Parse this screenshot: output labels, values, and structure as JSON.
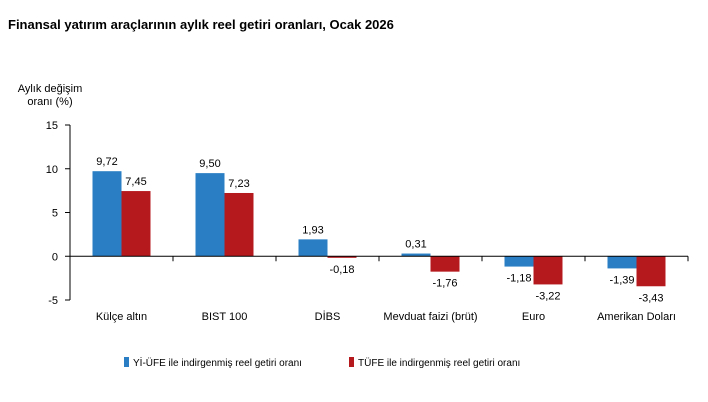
{
  "chart_data": {
    "type": "bar",
    "title": "Finansal yatırım araçlarının aylık reel getiri oranları, Ocak 2026",
    "ylabel_lines": [
      "Aylık değişim",
      "oranı (%)"
    ],
    "xlabel": "",
    "ylim": [
      -5,
      15
    ],
    "yticks": [
      -5,
      0,
      5,
      10,
      15
    ],
    "grid": false,
    "legend_position": "bottom",
    "categories": [
      "Külçe altın",
      "BIST 100",
      "DİBS",
      "Mevduat faizi (brüt)",
      "Euro",
      "Amerikan Doları"
    ],
    "series": [
      {
        "name": "Yİ-ÜFE ile indirgenmiş reel getiri oranı",
        "color": "#2a7fc4",
        "values": [
          9.72,
          9.5,
          1.93,
          0.31,
          -1.18,
          -1.39
        ],
        "labels": [
          "9,72",
          "9,50",
          "1,93",
          "0,31",
          "-1,18",
          "-1,39"
        ]
      },
      {
        "name": "TÜFE ile indirgenmiş reel getiri oranı",
        "color": "#b5191e",
        "values": [
          7.45,
          7.23,
          -0.18,
          -1.76,
          -3.22,
          -3.43
        ],
        "labels": [
          "7,45",
          "7,23",
          "-0,18",
          "-1,76",
          "-3,22",
          "-3,43"
        ]
      }
    ]
  }
}
